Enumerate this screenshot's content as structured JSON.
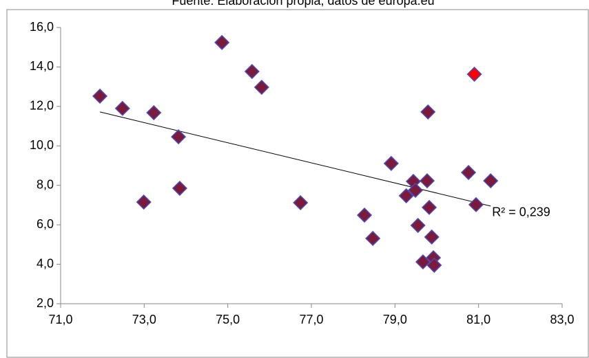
{
  "chart_data": {
    "type": "scatter",
    "title": "Fuente: Elaboración propia, datos de europa.eu",
    "series": [
      {
        "color": "#7b1a3a",
        "x": [
          71.94,
          72.48,
          72.99,
          73.23,
          73.82,
          73.85,
          74.86,
          75.58,
          75.81,
          76.74,
          78.27,
          78.47,
          78.91,
          79.27,
          79.44,
          79.49,
          79.55,
          79.67,
          79.77,
          79.79,
          79.82,
          79.88,
          79.92,
          79.94,
          80.76,
          80.94,
          81.29
        ],
        "values": [
          12.52,
          11.9,
          7.15,
          11.68,
          10.46,
          7.85,
          15.24,
          13.77,
          12.97,
          7.12,
          6.49,
          5.31,
          9.11,
          7.47,
          8.2,
          7.75,
          5.97,
          4.12,
          8.23,
          11.72,
          6.88,
          5.38,
          4.33,
          3.95,
          8.65,
          7.02,
          8.23
        ]
      },
      {
        "color": "#ff0000",
        "x": [
          80.9
        ],
        "values": [
          13.63
        ]
      }
    ],
    "trendline": {
      "x": [
        71.94,
        81.29
      ],
      "values": [
        11.72,
        6.95
      ],
      "label": "R² = 0,239"
    },
    "xlim": [
      71,
      83
    ],
    "xticks": [
      {
        "value": 71,
        "label": "71,0"
      },
      {
        "value": 73,
        "label": "73,0"
      },
      {
        "value": 75,
        "label": "75,0"
      },
      {
        "value": 77,
        "label": "77,0"
      },
      {
        "value": 79,
        "label": "79,0"
      },
      {
        "value": 81,
        "label": "81,0"
      },
      {
        "value": 83,
        "label": "83,0"
      }
    ],
    "ylim": [
      2,
      16
    ],
    "yticks": [
      {
        "value": 2,
        "label": "2,0"
      },
      {
        "value": 4,
        "label": "4,0"
      },
      {
        "value": 6,
        "label": "6,0"
      },
      {
        "value": 8,
        "label": "8,0"
      },
      {
        "value": 10,
        "label": "10,0"
      },
      {
        "value": 12,
        "label": "12,0"
      },
      {
        "value": 14,
        "label": "14,0"
      },
      {
        "value": 16,
        "label": "16,0"
      }
    ],
    "grid": false
  }
}
